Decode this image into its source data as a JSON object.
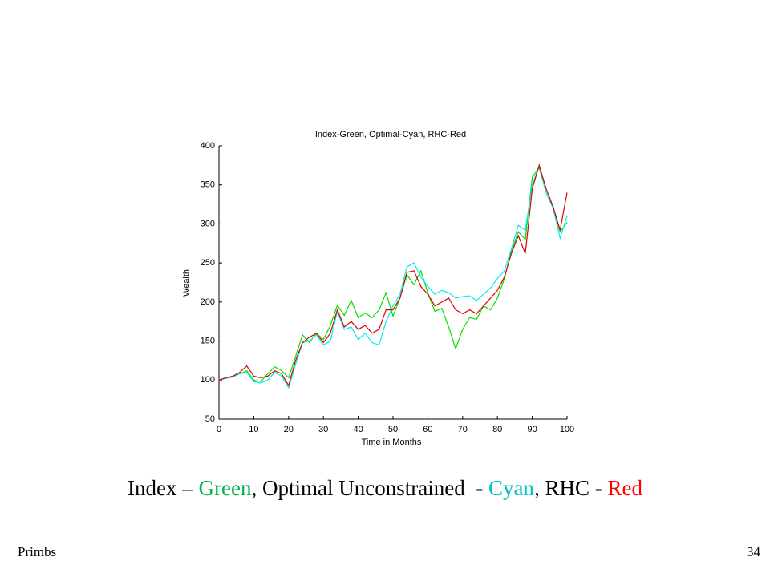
{
  "chart_data": {
    "type": "line",
    "title": "Index-Green, Optimal-Cyan, RHC-Red",
    "xlabel": "Time in Months",
    "ylabel": "Wealth",
    "x": [
      0,
      2,
      4,
      6,
      8,
      10,
      12,
      14,
      16,
      18,
      20,
      22,
      24,
      26,
      28,
      30,
      32,
      34,
      36,
      38,
      40,
      42,
      44,
      46,
      48,
      50,
      52,
      54,
      56,
      58,
      60,
      62,
      64,
      66,
      68,
      70,
      72,
      74,
      76,
      78,
      80,
      82,
      84,
      86,
      88,
      90,
      92,
      94,
      96,
      98,
      100
    ],
    "series": [
      {
        "color": "#00e000",
        "values": [
          100,
          103,
          105,
          108,
          112,
          100,
          98,
          108,
          117,
          112,
          103,
          130,
          158,
          148,
          160,
          152,
          170,
          196,
          183,
          202,
          180,
          186,
          180,
          190,
          212,
          182,
          205,
          235,
          222,
          240,
          212,
          188,
          192,
          168,
          140,
          165,
          180,
          178,
          195,
          190,
          205,
          230,
          265,
          290,
          280,
          360,
          372,
          340,
          320,
          290,
          302
        ]
      },
      {
        "color": "#00eeee",
        "values": [
          100,
          102,
          104,
          108,
          110,
          98,
          96,
          100,
          110,
          105,
          90,
          120,
          148,
          150,
          158,
          145,
          150,
          188,
          165,
          168,
          152,
          160,
          148,
          145,
          175,
          195,
          210,
          245,
          250,
          232,
          220,
          210,
          215,
          212,
          205,
          207,
          208,
          202,
          210,
          218,
          230,
          240,
          268,
          298,
          292,
          350,
          375,
          340,
          320,
          282,
          310
        ]
      },
      {
        "color": "#dd0000",
        "values": [
          100,
          103,
          105,
          110,
          118,
          105,
          103,
          105,
          112,
          108,
          93,
          125,
          148,
          155,
          160,
          148,
          160,
          190,
          168,
          175,
          165,
          170,
          160,
          165,
          190,
          190,
          205,
          238,
          240,
          220,
          210,
          195,
          200,
          205,
          190,
          185,
          190,
          185,
          195,
          205,
          215,
          232,
          262,
          285,
          262,
          345,
          375,
          345,
          322,
          292,
          340
        ]
      }
    ],
    "xlim": [
      0,
      100
    ],
    "xticks": [
      0,
      10,
      20,
      30,
      40,
      50,
      60,
      70,
      80,
      90,
      100
    ],
    "ylim": [
      50,
      400
    ],
    "yticks": [
      50,
      100,
      150,
      200,
      250,
      300,
      350,
      400
    ],
    "grid": false
  },
  "caption": [
    {
      "text": "Index – ",
      "color": "#000000"
    },
    {
      "text": "Green",
      "color": "#00b050"
    },
    {
      "text": ", Optimal Unconstrained  - ",
      "color": "#000000"
    },
    {
      "text": "Cyan",
      "color": "#00c0c0"
    },
    {
      "text": ", RHC - ",
      "color": "#000000"
    },
    {
      "text": "Red",
      "color": "#ff0000"
    }
  ],
  "footer": {
    "left": "Primbs",
    "right": "34"
  }
}
